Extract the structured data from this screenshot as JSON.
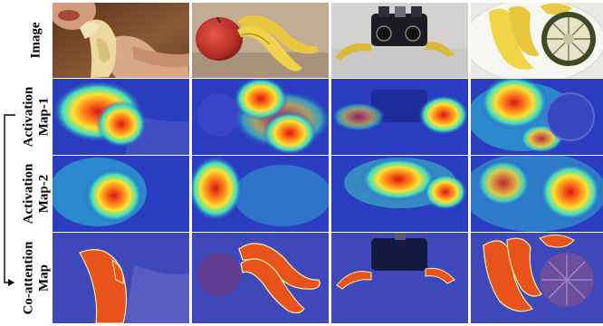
{
  "rows": [
    {
      "key": "image",
      "lines": [
        "Image"
      ]
    },
    {
      "key": "act1",
      "lines": [
        "Activation",
        "Map-1"
      ]
    },
    {
      "key": "act2",
      "lines": [
        "Activation",
        "Map-2"
      ]
    },
    {
      "key": "coatt",
      "lines": [
        "Co-attention",
        "Map"
      ]
    }
  ],
  "columns": [
    {
      "scene": "person-eating-banana"
    },
    {
      "scene": "apple-and-bananas"
    },
    {
      "scene": "banana-with-binoculars"
    },
    {
      "scene": "bananas-and-sugar-apple-in-bowl"
    }
  ],
  "colors": {
    "heat_background": "#2a3cc0",
    "heat_hot": "#e01010",
    "heat_warm": "#ffd21e",
    "heat_mild": "#34e0c0",
    "mask": "#e8531c",
    "banana": "#e7c742",
    "apple": "#c2352d"
  }
}
